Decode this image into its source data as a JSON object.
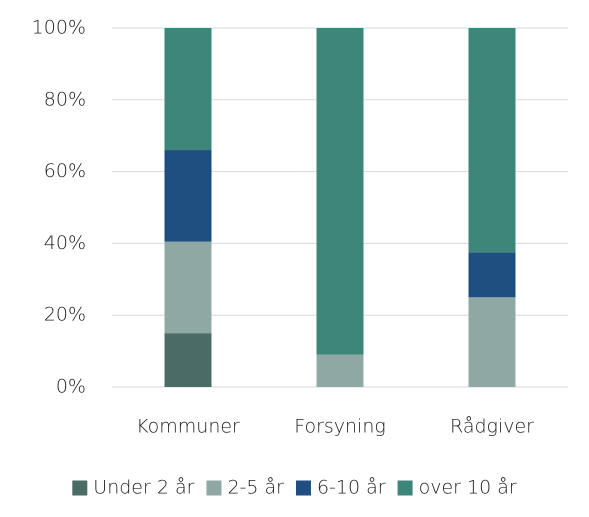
{
  "chart_data": {
    "type": "stacked_bar",
    "categories": [
      "Kommuner",
      "Forsyning",
      "Rådgiver"
    ],
    "series": [
      {
        "name": "Under 2 år",
        "color": "#4a6b66",
        "values": [
          15,
          0,
          0
        ]
      },
      {
        "name": "2-5 år",
        "color": "#8fa8a4",
        "values": [
          25.5,
          9,
          25
        ]
      },
      {
        "name": "6-10 år",
        "color": "#1f4e80",
        "values": [
          25.5,
          0,
          12.5
        ]
      },
      {
        "name": "over 10 år",
        "color": "#3f867a",
        "values": [
          34,
          91,
          62.5
        ]
      }
    ],
    "ylim": [
      0,
      100
    ],
    "yticks": [
      {
        "value": 0,
        "label": "0%"
      },
      {
        "value": 20,
        "label": "20%"
      },
      {
        "value": 40,
        "label": "40%"
      },
      {
        "value": 60,
        "label": "60%"
      },
      {
        "value": 80,
        "label": "80%"
      },
      {
        "value": 100,
        "label": "100%"
      }
    ],
    "grid": true,
    "legend": "bottom"
  }
}
